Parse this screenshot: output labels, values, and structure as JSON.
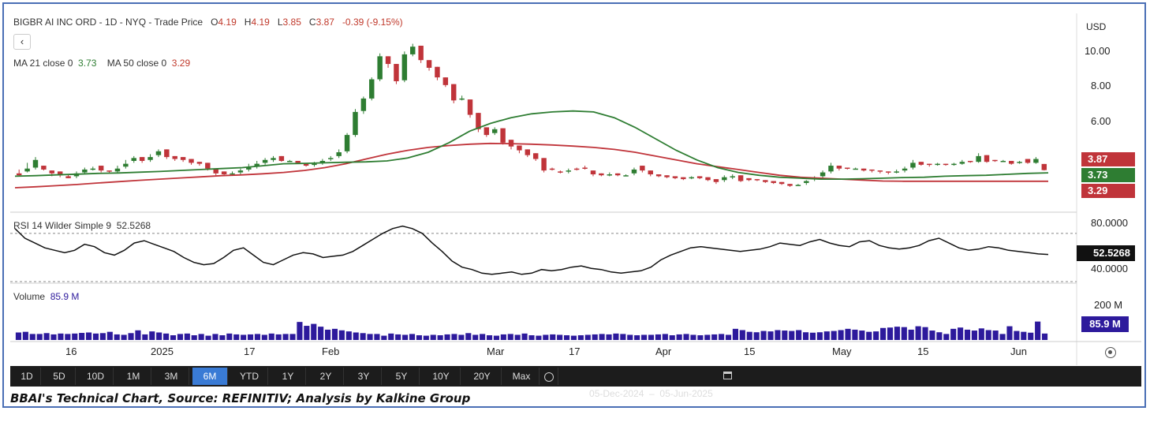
{
  "header": {
    "title": "BIGBR AI INC ORD - 1D - NYQ - Trade Price",
    "o_label": "O",
    "o": "4.19",
    "h_label": "H",
    "h": "4.19",
    "l_label": "L",
    "l": "3.85",
    "c_label": "C",
    "c": "3.87",
    "chg": "-0.39 (-9.15%)",
    "back_icon": "chevron-left-icon",
    "ma21_label": "MA 21 close 0",
    "ma21_value": "3.73",
    "ma50_label": "MA 50 close 0",
    "ma50_value": "3.29",
    "currency": "USD"
  },
  "price_axis": {
    "ticks": [
      "10.00",
      "8.00",
      "6.00"
    ],
    "tags": {
      "close": "3.87",
      "ma21": "3.73",
      "ma50": "3.29"
    }
  },
  "rsi": {
    "label": "RSI 14 Wilder Simple 9",
    "value": "52.5268",
    "ticks": [
      "80.0000",
      "40.0000"
    ]
  },
  "volume": {
    "label": "Volume",
    "value": "85.9 M",
    "ticks": [
      "200 M"
    ],
    "tag": "85.9 M"
  },
  "x_axis": {
    "ticks": [
      "16",
      "2025",
      "17",
      "Feb",
      "Mar",
      "17",
      "Apr",
      "15",
      "May",
      "15",
      "Jun"
    ]
  },
  "toolbar": {
    "ranges": [
      "1D",
      "5D",
      "10D",
      "1M",
      "3M",
      "6M",
      "YTD",
      "1Y",
      "2Y",
      "3Y",
      "5Y",
      "10Y",
      "20Y",
      "Max"
    ],
    "active": "6M",
    "date_range": "05-Dec-2024  –  05-Jun-2025",
    "calendar_icon": "calendar-icon",
    "settings_icon": "target-icon"
  },
  "caption": "BBAI's Technical Chart, Source: REFINITIV; Analysis by Kalkine Group",
  "colors": {
    "up": "#2e7d32",
    "down": "#c0343a",
    "ma21": "#2e7d32",
    "ma50": "#c0343a",
    "rsi": "#111111",
    "volume": "#2d1a9c",
    "toolbar": "#1c1c1c"
  },
  "chart_data": {
    "type": "candlestick",
    "title": "BIGBR AI INC ORD - 1D - NYQ - Trade Price",
    "ylim": [
      2.5,
      10.8
    ],
    "candles": [
      [
        3.55,
        3.7,
        3.6,
        3.9
      ],
      [
        3.75,
        3.8,
        3.95,
        4.25
      ],
      [
        3.9,
        4.0,
        4.4,
        4.55
      ],
      [
        4.0,
        4.1,
        3.9,
        3.85
      ],
      [
        3.7,
        3.85,
        3.7,
        3.55
      ],
      [
        3.65,
        3.8,
        3.6,
        3.5
      ],
      [
        3.5,
        3.55,
        3.45,
        3.65
      ],
      [
        3.45,
        3.55,
        3.7,
        3.8
      ],
      [
        3.65,
        3.75,
        3.9,
        4.0
      ],
      [
        3.85,
        3.95,
        3.95,
        4.05
      ],
      [
        4.05,
        4.1,
        3.85,
        3.75
      ],
      [
        3.8,
        3.85,
        3.8,
        3.7
      ],
      [
        3.75,
        3.8,
        3.95,
        4.1
      ],
      [
        3.95,
        4.05,
        4.2,
        4.4
      ],
      [
        4.25,
        4.35,
        4.5,
        4.6
      ],
      [
        4.45,
        4.55,
        4.35,
        4.25
      ],
      [
        4.3,
        4.4,
        4.55,
        4.7
      ],
      [
        4.55,
        4.65,
        4.85,
        4.95
      ],
      [
        4.85,
        4.95,
        4.55,
        4.45
      ],
      [
        4.5,
        4.6,
        4.45,
        4.35
      ],
      [
        4.45,
        4.55,
        4.4,
        4.3
      ],
      [
        4.35,
        4.45,
        4.25,
        4.15
      ],
      [
        4.2,
        4.3,
        4.2,
        4.1
      ],
      [
        4.15,
        4.25,
        3.95,
        3.85
      ],
      [
        3.85,
        3.95,
        3.7,
        3.6
      ],
      [
        3.7,
        3.8,
        3.65,
        3.55
      ],
      [
        3.6,
        3.7,
        3.7,
        3.8
      ],
      [
        3.65,
        3.75,
        3.85,
        3.95
      ],
      [
        3.8,
        3.9,
        4.0,
        4.2
      ],
      [
        3.95,
        4.05,
        4.2,
        4.35
      ],
      [
        4.15,
        4.25,
        4.4,
        4.5
      ],
      [
        4.3,
        4.4,
        4.5,
        4.6
      ],
      [
        4.5,
        4.6,
        4.35,
        4.3
      ],
      [
        4.3,
        4.35,
        4.35,
        4.4
      ],
      [
        4.3,
        4.35,
        4.25,
        4.2
      ],
      [
        4.15,
        4.2,
        4.1,
        4.05
      ],
      [
        4.05,
        4.15,
        4.2,
        4.3
      ],
      [
        4.15,
        4.25,
        4.35,
        4.45
      ],
      [
        4.35,
        4.45,
        4.5,
        4.6
      ],
      [
        4.5,
        4.6,
        4.8,
        4.95
      ],
      [
        4.75,
        4.85,
        5.7,
        5.8
      ],
      [
        5.6,
        5.7,
        6.9,
        7.05
      ],
      [
        6.8,
        6.95,
        7.6,
        7.7
      ],
      [
        7.5,
        7.6,
        8.6,
        8.7
      ],
      [
        8.5,
        8.6,
        9.8,
        9.95
      ],
      [
        9.7,
        9.8,
        9.4,
        9.2
      ],
      [
        9.3,
        9.4,
        8.5,
        8.35
      ],
      [
        8.45,
        8.55,
        9.9,
        10.05
      ],
      [
        9.8,
        9.9,
        10.3,
        10.45
      ],
      [
        10.2,
        10.35,
        9.6,
        9.45
      ],
      [
        9.5,
        9.6,
        9.2,
        9.05
      ],
      [
        9.15,
        9.25,
        8.7,
        8.55
      ],
      [
        8.6,
        8.7,
        8.3,
        8.2
      ],
      [
        8.2,
        8.35,
        7.5,
        7.35
      ],
      [
        7.5,
        7.6,
        7.6,
        7.75
      ],
      [
        7.45,
        7.55,
        6.75,
        6.6
      ],
      [
        6.75,
        6.85,
        6.0,
        5.85
      ],
      [
        6.0,
        6.1,
        5.7,
        5.6
      ],
      [
        5.7,
        5.8,
        6.0,
        6.1
      ],
      [
        5.95,
        6.05,
        5.3,
        5.2
      ],
      [
        5.35,
        5.45,
        5.1,
        4.95
      ],
      [
        5.05,
        5.15,
        4.9,
        4.75
      ],
      [
        4.85,
        4.95,
        4.65,
        4.55
      ],
      [
        4.65,
        4.75,
        4.45,
        4.35
      ],
      [
        4.45,
        4.5,
        3.85,
        3.75
      ],
      [
        3.85,
        3.95,
        3.9,
        4.0
      ],
      [
        3.7,
        3.8,
        3.75,
        3.85
      ],
      [
        3.7,
        3.8,
        3.85,
        3.95
      ],
      [
        3.85,
        3.95,
        3.9,
        4.0
      ],
      [
        3.9,
        4.0,
        3.95,
        4.1
      ],
      [
        3.8,
        3.85,
        3.65,
        3.55
      ],
      [
        3.6,
        3.7,
        3.6,
        3.55
      ],
      [
        3.55,
        3.65,
        3.65,
        3.75
      ],
      [
        3.6,
        3.7,
        3.6,
        3.55
      ],
      [
        3.55,
        3.6,
        3.6,
        3.65
      ],
      [
        3.6,
        3.7,
        3.9,
        4.0
      ],
      [
        3.95,
        4.1,
        3.85,
        3.75
      ],
      [
        3.8,
        3.85,
        3.65,
        3.55
      ],
      [
        3.6,
        3.65,
        3.55,
        3.5
      ],
      [
        3.5,
        3.6,
        3.5,
        3.45
      ],
      [
        3.45,
        3.55,
        3.45,
        3.4
      ],
      [
        3.4,
        3.5,
        3.4,
        3.35
      ],
      [
        3.4,
        3.45,
        3.5,
        3.55
      ],
      [
        3.45,
        3.55,
        3.45,
        3.4
      ],
      [
        3.4,
        3.5,
        3.35,
        3.3
      ],
      [
        3.3,
        3.4,
        3.25,
        3.15
      ],
      [
        3.25,
        3.35,
        3.5,
        3.6
      ],
      [
        3.4,
        3.5,
        3.55,
        3.65
      ],
      [
        3.5,
        3.6,
        3.3,
        3.25
      ],
      [
        3.35,
        3.45,
        3.35,
        3.3
      ],
      [
        3.35,
        3.4,
        3.35,
        3.3
      ],
      [
        3.3,
        3.35,
        3.25,
        3.2
      ],
      [
        3.2,
        3.3,
        3.2,
        3.15
      ],
      [
        3.15,
        3.25,
        3.15,
        3.1
      ],
      [
        3.1,
        3.15,
        3.05,
        3.0
      ],
      [
        3.05,
        3.1,
        3.1,
        3.15
      ],
      [
        3.1,
        3.2,
        3.3,
        3.35
      ],
      [
        3.3,
        3.4,
        3.45,
        3.55
      ],
      [
        3.45,
        3.55,
        3.75,
        3.85
      ],
      [
        3.7,
        3.8,
        4.1,
        4.25
      ],
      [
        4.0,
        4.1,
        3.95,
        3.85
      ],
      [
        3.9,
        4.0,
        3.95,
        3.9
      ],
      [
        3.9,
        3.95,
        3.95,
        4.0
      ],
      [
        3.9,
        3.95,
        3.85,
        3.8
      ],
      [
        3.8,
        3.9,
        3.85,
        3.75
      ],
      [
        3.75,
        3.85,
        3.8,
        3.7
      ],
      [
        3.7,
        3.8,
        3.75,
        3.65
      ],
      [
        3.7,
        3.8,
        3.8,
        3.9
      ],
      [
        3.75,
        3.85,
        3.95,
        4.05
      ],
      [
        3.9,
        4.0,
        4.25,
        4.4
      ],
      [
        4.2,
        4.3,
        4.15,
        4.1
      ],
      [
        4.1,
        4.2,
        4.15,
        4.05
      ],
      [
        4.1,
        4.15,
        4.2,
        4.25
      ],
      [
        4.15,
        4.2,
        4.15,
        4.1
      ],
      [
        4.1,
        4.15,
        4.2,
        4.25
      ],
      [
        4.15,
        4.2,
        4.3,
        4.4
      ],
      [
        4.25,
        4.35,
        4.3,
        4.25
      ],
      [
        4.25,
        4.3,
        4.6,
        4.75
      ],
      [
        4.55,
        4.65,
        4.3,
        4.25
      ],
      [
        4.3,
        4.4,
        4.35,
        4.3
      ],
      [
        4.3,
        4.35,
        4.35,
        4.4
      ],
      [
        4.3,
        4.35,
        4.2,
        4.15
      ],
      [
        4.2,
        4.25,
        4.3,
        4.35
      ],
      [
        4.4,
        4.45,
        4.25,
        4.2
      ],
      [
        4.2,
        4.25,
        4.45,
        4.55
      ],
      [
        4.19,
        4.19,
        3.87,
        3.85
      ]
    ],
    "ma21": [
      3.55,
      3.58,
      3.62,
      3.66,
      3.7,
      3.72,
      3.76,
      3.8,
      3.85,
      3.9,
      3.95,
      4.0,
      4.1,
      4.2,
      4.22,
      4.25,
      4.28,
      4.3,
      4.35,
      4.5,
      4.8,
      5.3,
      5.9,
      6.3,
      6.6,
      6.8,
      6.9,
      6.95,
      6.9,
      6.6,
      6.1,
      5.5,
      4.9,
      4.4,
      4.0,
      3.75,
      3.6,
      3.5,
      3.45,
      3.4,
      3.4,
      3.42,
      3.45,
      3.48,
      3.5,
      3.55,
      3.58,
      3.6,
      3.65,
      3.7,
      3.73
    ],
    "ma50": [
      2.95,
      3.0,
      3.06,
      3.12,
      3.2,
      3.27,
      3.34,
      3.4,
      3.46,
      3.52,
      3.58,
      3.62,
      3.68,
      3.75,
      3.85,
      4.0,
      4.2,
      4.45,
      4.7,
      4.9,
      5.05,
      5.15,
      5.22,
      5.26,
      5.25,
      5.22,
      5.18,
      5.12,
      5.05,
      4.95,
      4.8,
      4.6,
      4.4,
      4.2,
      4.05,
      3.9,
      3.75,
      3.6,
      3.5,
      3.45,
      3.4,
      3.35,
      3.3,
      3.29,
      3.29,
      3.29,
      3.29,
      3.29,
      3.29,
      3.29,
      3.29
    ],
    "rsi": [
      74,
      66,
      62,
      58,
      56,
      54,
      56,
      61,
      59,
      54,
      52,
      56,
      62,
      64,
      61,
      58,
      55,
      50,
      46,
      44,
      45,
      50,
      56,
      58,
      52,
      46,
      44,
      48,
      52,
      54,
      53,
      50,
      51,
      52,
      55,
      60,
      65,
      70,
      74,
      76,
      74,
      70,
      62,
      55,
      47,
      42,
      40,
      37,
      36,
      37,
      38,
      36,
      37,
      40,
      39,
      40,
      42,
      43,
      41,
      40,
      38,
      37,
      38,
      39,
      42,
      48,
      52,
      55,
      58,
      59,
      58,
      57,
      56,
      55,
      56,
      57,
      59,
      62,
      61,
      60,
      63,
      65,
      62,
      60,
      59,
      63,
      64,
      60,
      58,
      57,
      58,
      60,
      64,
      66,
      62,
      58,
      56,
      57,
      59,
      58,
      56,
      55,
      54,
      53,
      52.5
    ],
    "rsi_ylim": [
      30,
      85
    ],
    "rsi_levels": [
      70,
      30
    ],
    "volume": [
      35,
      38,
      28,
      28,
      32,
      26,
      30,
      28,
      30,
      33,
      35,
      30,
      32,
      38,
      26,
      24,
      32,
      45,
      26,
      40,
      35,
      30,
      22,
      28,
      30,
      22,
      28,
      20,
      28,
      22,
      30,
      26,
      24,
      26,
      28,
      24,
      30,
      26,
      28,
      28,
      84,
      66,
      75,
      62,
      48,
      52,
      45,
      40,
      35,
      32,
      28,
      28,
      20,
      30,
      26,
      24,
      28,
      22,
      20,
      24,
      22,
      26,
      28,
      24,
      32,
      24,
      28,
      22,
      20,
      26,
      28,
      24,
      30,
      22,
      20,
      24,
      26,
      24,
      22,
      20,
      22,
      24,
      26,
      28,
      26,
      30,
      28,
      24,
      22,
      24,
      24,
      26,
      28,
      22,
      26,
      28,
      24,
      22,
      24,
      26,
      28,
      24,
      52,
      46,
      38,
      36,
      42,
      40,
      46,
      44,
      42,
      46,
      36,
      34,
      36,
      40,
      42,
      46,
      52,
      48,
      44,
      38,
      40,
      56,
      58,
      62,
      60,
      48,
      64,
      60,
      44,
      36,
      28,
      52,
      58,
      48,
      44,
      54,
      46,
      44,
      28,
      64,
      42,
      38,
      34,
      85.9,
      30
    ],
    "volume_ylim": [
      0,
      250
    ]
  }
}
